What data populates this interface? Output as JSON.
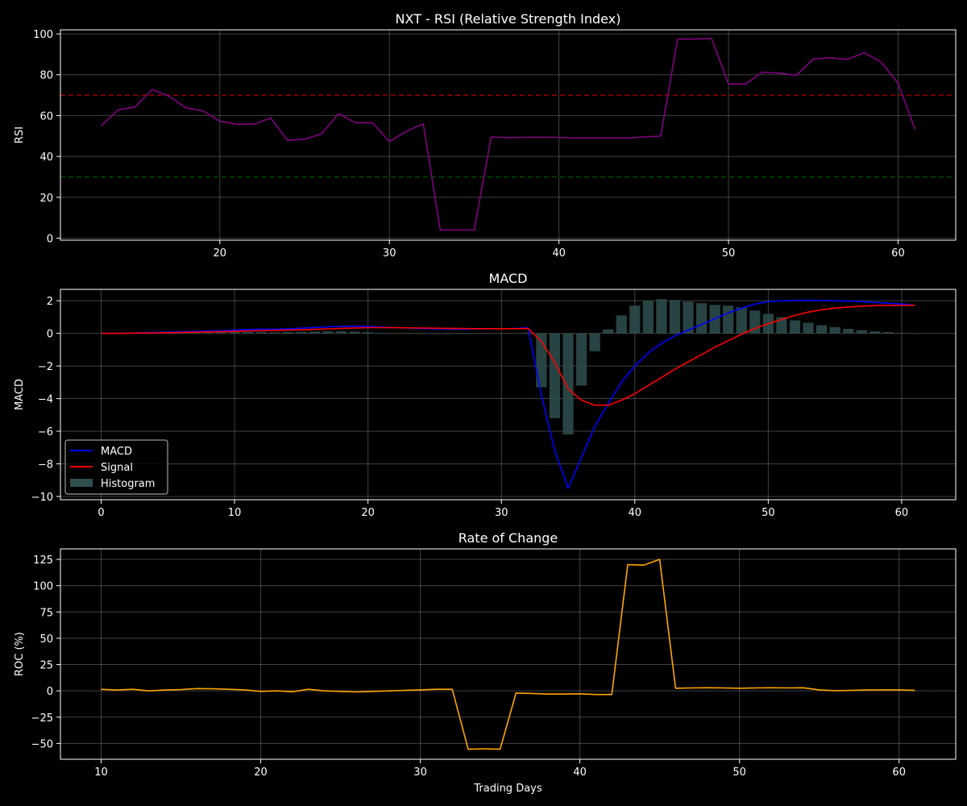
{
  "chart_data": [
    {
      "type": "line",
      "title": "NXT - RSI (Relative Strength Index)",
      "xlabel": "",
      "ylabel": "RSI",
      "xlim": [
        10.6,
        63.4
      ],
      "ylim": [
        -1,
        102
      ],
      "xticks": [
        20,
        30,
        40,
        50,
        60
      ],
      "yticks": [
        0,
        20,
        40,
        60,
        80,
        100
      ],
      "grid": true,
      "series": [
        {
          "color": "#800080",
          "x": [
            13,
            14,
            15,
            16,
            17,
            18,
            19,
            20,
            21,
            22,
            23,
            24,
            25,
            26,
            27,
            28,
            29,
            30,
            31,
            32,
            33,
            34,
            35,
            36,
            37,
            38,
            39,
            40,
            41,
            42,
            43,
            44,
            45,
            46,
            47,
            48,
            49,
            50,
            51,
            52,
            53,
            54,
            55,
            56,
            57,
            58,
            59,
            60,
            61
          ],
          "values": [
            55,
            62.8,
            64.2,
            72.8,
            69.5,
            63.8,
            62.3,
            57.3,
            55.8,
            55.8,
            58.8,
            47.8,
            48.5,
            51,
            61,
            56.5,
            56.5,
            47.3,
            52.3,
            56,
            4,
            4,
            4,
            49.5,
            49.2,
            49.3,
            49.4,
            49.3,
            49,
            49,
            49,
            49,
            49.5,
            50,
            97.5,
            97.5,
            97.8,
            75.5,
            75.5,
            81.3,
            80.8,
            79.7,
            87.7,
            88.3,
            87.5,
            90.8,
            86.3,
            75.8,
            53.3
          ]
        }
      ],
      "reference_lines": [
        {
          "y": 70,
          "color": "#ff0000",
          "style": "dashed"
        },
        {
          "y": 30,
          "color": "#008000",
          "style": "dashed"
        }
      ]
    },
    {
      "type": "line",
      "title": "MACD",
      "xlabel": "",
      "ylabel": "MACD",
      "xlim": [
        -3.05,
        64.05
      ],
      "ylim": [
        -10.2,
        2.7
      ],
      "xticks": [
        0,
        10,
        20,
        30,
        40,
        50,
        60
      ],
      "yticks": [
        -10,
        -8,
        -6,
        -4,
        -2,
        0,
        2
      ],
      "grid": true,
      "legend": {
        "position": "lower-left",
        "entries": [
          "MACD",
          "Signal",
          "Histogram"
        ]
      },
      "series": [
        {
          "name": "MACD",
          "color": "#0000ff",
          "x": [
            0,
            1,
            2,
            3,
            4,
            5,
            6,
            7,
            8,
            9,
            10,
            11,
            12,
            13,
            14,
            15,
            16,
            17,
            18,
            19,
            20,
            21,
            22,
            23,
            24,
            25,
            26,
            27,
            28,
            29,
            30,
            31,
            32,
            33,
            34,
            35,
            36,
            37,
            38,
            39,
            40,
            41,
            42,
            43,
            44,
            45,
            46,
            47,
            48,
            49,
            50,
            51,
            52,
            53,
            54,
            55,
            56,
            57,
            58,
            59,
            60,
            61
          ],
          "values": [
            0,
            0.01,
            0.02,
            0.04,
            0.06,
            0.08,
            0.1,
            0.12,
            0.14,
            0.16,
            0.2,
            0.24,
            0.26,
            0.25,
            0.28,
            0.32,
            0.36,
            0.4,
            0.43,
            0.44,
            0.42,
            0.38,
            0.35,
            0.33,
            0.3,
            0.28,
            0.27,
            0.26,
            0.27,
            0.28,
            0.29,
            0.3,
            0.35,
            -3.8,
            -7.2,
            -9.5,
            -7.6,
            -5.7,
            -4.3,
            -3.0,
            -2.0,
            -1.2,
            -0.6,
            -0.15,
            0.2,
            0.55,
            0.9,
            1.25,
            1.55,
            1.8,
            1.95,
            2.0,
            2.02,
            2.03,
            2.02,
            2.0,
            1.98,
            1.95,
            1.9,
            1.85,
            1.8,
            1.72
          ]
        },
        {
          "name": "Signal",
          "color": "#ff0000",
          "x": [
            0,
            1,
            2,
            3,
            4,
            5,
            6,
            7,
            8,
            9,
            10,
            11,
            12,
            13,
            14,
            15,
            16,
            17,
            18,
            19,
            20,
            21,
            22,
            23,
            24,
            25,
            26,
            27,
            28,
            29,
            30,
            31,
            32,
            33,
            34,
            35,
            36,
            37,
            38,
            39,
            40,
            41,
            42,
            43,
            44,
            45,
            46,
            47,
            48,
            49,
            50,
            51,
            52,
            53,
            54,
            55,
            56,
            57,
            58,
            59,
            60,
            61
          ],
          "values": [
            0,
            0,
            0.01,
            0.02,
            0.03,
            0.04,
            0.06,
            0.07,
            0.09,
            0.1,
            0.12,
            0.15,
            0.17,
            0.18,
            0.2,
            0.22,
            0.25,
            0.28,
            0.31,
            0.33,
            0.35,
            0.35,
            0.35,
            0.34,
            0.33,
            0.32,
            0.31,
            0.3,
            0.29,
            0.29,
            0.29,
            0.29,
            0.3,
            -0.5,
            -1.8,
            -3.4,
            -4.1,
            -4.4,
            -4.4,
            -4.1,
            -3.7,
            -3.2,
            -2.7,
            -2.2,
            -1.75,
            -1.3,
            -0.85,
            -0.45,
            -0.05,
            0.3,
            0.6,
            0.85,
            1.1,
            1.3,
            1.45,
            1.55,
            1.62,
            1.67,
            1.7,
            1.72,
            1.72,
            1.72
          ]
        },
        {
          "name": "Histogram",
          "type": "bar",
          "color": "#2f4f4f",
          "x": [
            0,
            1,
            2,
            3,
            4,
            5,
            6,
            7,
            8,
            9,
            10,
            11,
            12,
            13,
            14,
            15,
            16,
            17,
            18,
            19,
            20,
            21,
            22,
            23,
            24,
            25,
            26,
            27,
            28,
            29,
            30,
            31,
            32,
            33,
            34,
            35,
            36,
            37,
            38,
            39,
            40,
            41,
            42,
            43,
            44,
            45,
            46,
            47,
            48,
            49,
            50,
            51,
            52,
            53,
            54,
            55,
            56,
            57,
            58,
            59,
            60,
            61
          ],
          "values": [
            0,
            0.01,
            0.01,
            0.02,
            0.03,
            0.04,
            0.04,
            0.05,
            0.05,
            0.06,
            0.08,
            0.09,
            0.09,
            0.07,
            0.08,
            0.1,
            0.11,
            0.12,
            0.12,
            0.11,
            0.07,
            0.03,
            0,
            -0.01,
            -0.03,
            -0.04,
            -0.04,
            -0.04,
            -0.02,
            -0.01,
            0,
            0.01,
            0.05,
            -3.3,
            -5.2,
            -6.2,
            -3.2,
            -1.1,
            0.25,
            1.1,
            1.7,
            2.0,
            2.1,
            2.05,
            1.95,
            1.85,
            1.75,
            1.7,
            1.6,
            1.4,
            1.2,
            1.0,
            0.8,
            0.65,
            0.5,
            0.38,
            0.28,
            0.2,
            0.12,
            0.08,
            0.04,
            0
          ]
        }
      ]
    },
    {
      "type": "line",
      "title": "Rate of Change",
      "xlabel": "Trading Days",
      "ylabel": "ROC (%)",
      "xlim": [
        7.45,
        63.55
      ],
      "ylim": [
        -65,
        135
      ],
      "xticks": [
        10,
        20,
        30,
        40,
        50,
        60
      ],
      "yticks": [
        -50,
        -25,
        0,
        25,
        50,
        75,
        100,
        125
      ],
      "grid": true,
      "series": [
        {
          "color": "#ffa500",
          "x": [
            10,
            11,
            12,
            13,
            14,
            15,
            16,
            17,
            18,
            19,
            20,
            21,
            22,
            23,
            24,
            25,
            26,
            27,
            28,
            29,
            30,
            31,
            32,
            33,
            34,
            35,
            36,
            37,
            38,
            39,
            40,
            41,
            42,
            43,
            44,
            45,
            46,
            47,
            48,
            49,
            50,
            51,
            52,
            53,
            54,
            55,
            56,
            57,
            58,
            59,
            60,
            61
          ],
          "values": [
            1.5,
            0.8,
            1.5,
            0,
            0.8,
            1.2,
            2.2,
            2,
            1.5,
            1,
            -0.5,
            0,
            -0.8,
            1.5,
            0,
            -0.5,
            -1,
            -0.5,
            0,
            0.5,
            1,
            1.5,
            1.5,
            -55.5,
            -55,
            -55.5,
            -2,
            -2.5,
            -3,
            -3,
            -2.8,
            -3.5,
            -3.5,
            120,
            119.5,
            125,
            2.5,
            2.8,
            3,
            2.8,
            2.5,
            2.8,
            3,
            2.8,
            3,
            1,
            0.2,
            0.5,
            0.8,
            1,
            1,
            0.5
          ]
        }
      ]
    }
  ]
}
